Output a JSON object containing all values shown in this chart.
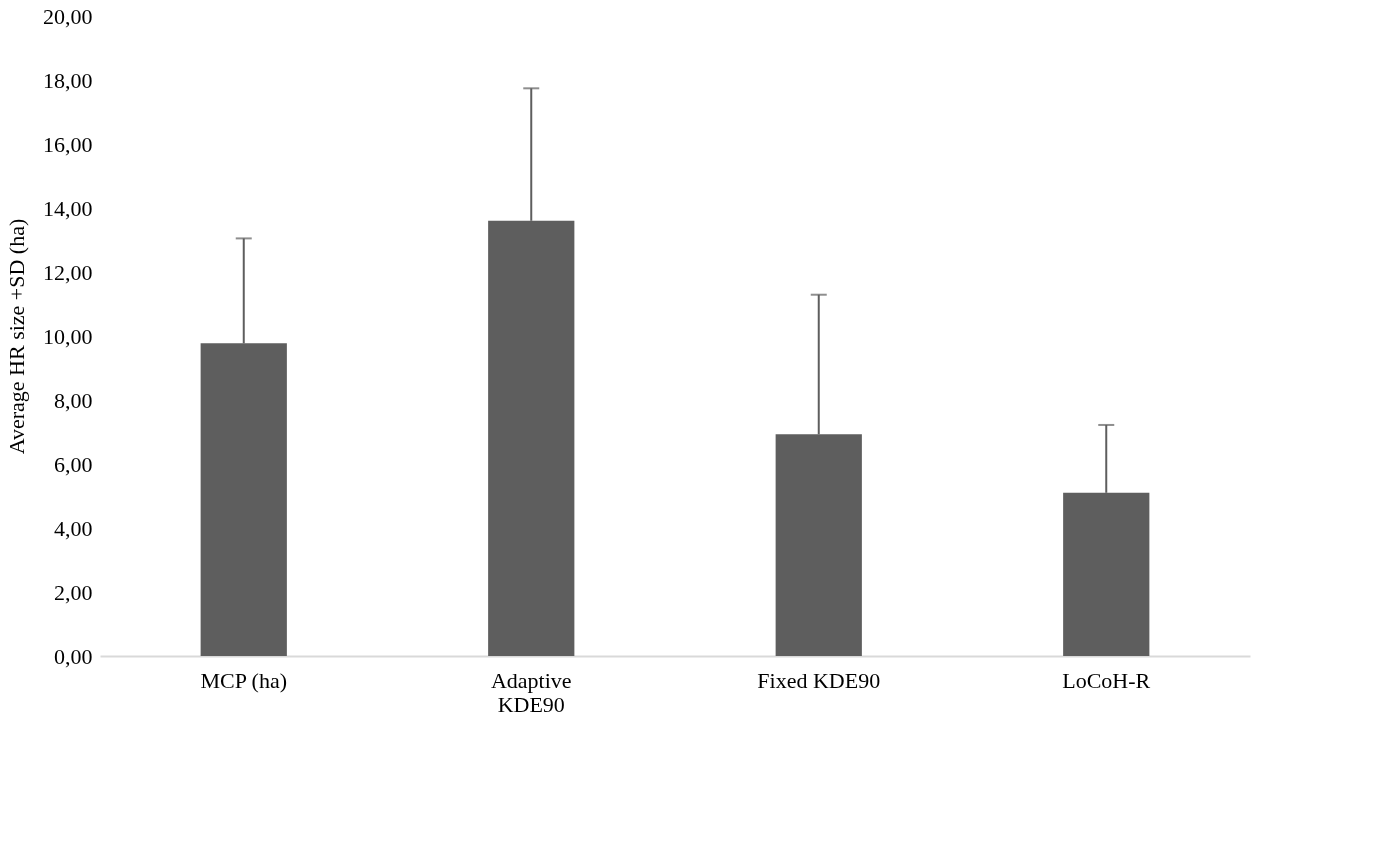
{
  "chart_data": {
    "type": "bar",
    "ylabel": "Average HR size +SD (ha)",
    "categories": [
      "MCP (ha)",
      "Adaptive KDE90",
      "Fixed KDE90",
      "LoCoH-R"
    ],
    "values": [
      9.77,
      13.6,
      6.93,
      5.1
    ],
    "errors": [
      [
        9.77,
        13.05
      ],
      [
        13.6,
        17.74
      ],
      [
        6.93,
        11.29
      ],
      [
        5.1,
        7.22
      ]
    ],
    "color": "#5e5e5e",
    "ylim": [
      0,
      20
    ],
    "yticks": [
      {
        "value": 0,
        "label": "0,00"
      },
      {
        "value": 2,
        "label": "2,00"
      },
      {
        "value": 4,
        "label": "4,00"
      },
      {
        "value": 6,
        "label": "6,00"
      },
      {
        "value": 8,
        "label": "8,00"
      },
      {
        "value": 10,
        "label": "10,00"
      },
      {
        "value": 12,
        "label": "12,00"
      },
      {
        "value": 14,
        "label": "14,00"
      },
      {
        "value": 16,
        "label": "16,00"
      },
      {
        "value": 18,
        "label": "18,00"
      },
      {
        "value": 20,
        "label": "20,00"
      }
    ],
    "grid": false
  }
}
